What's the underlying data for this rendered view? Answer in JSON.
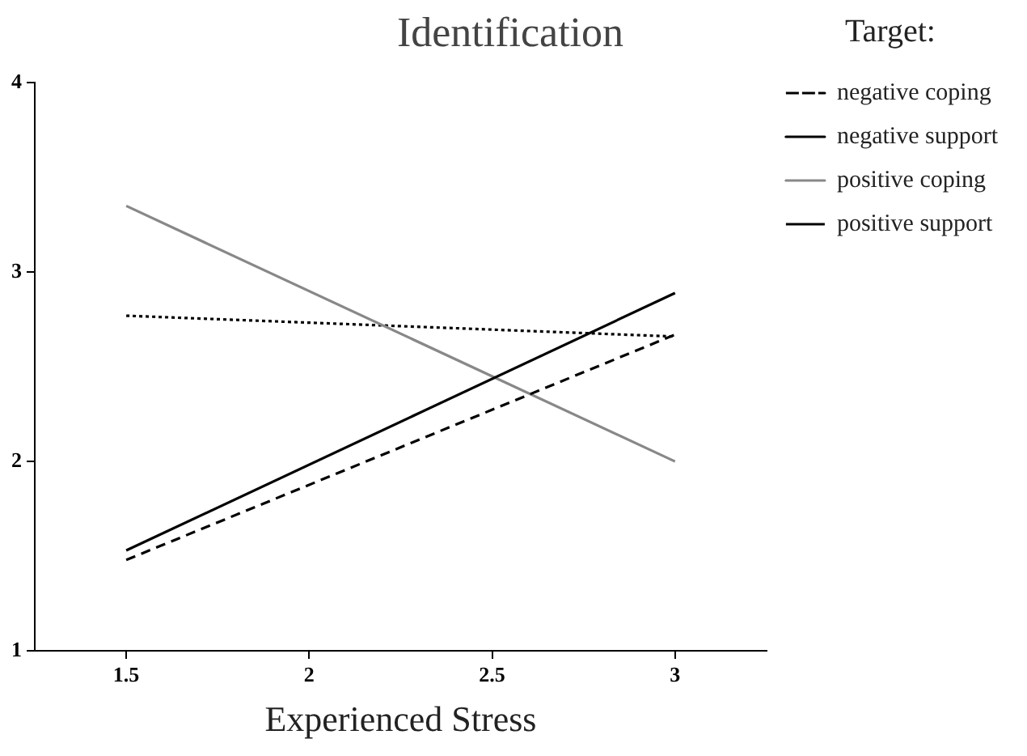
{
  "chart_data": {
    "type": "line",
    "title": "Identification",
    "xlabel": "Experienced Stress",
    "legend_title": "Target:",
    "legend": "right",
    "grid": false,
    "marker": "none",
    "x": [
      1.5,
      3
    ],
    "series": [
      {
        "name": "negative coping",
        "color": "#000000",
        "line_style": "dashed",
        "values": [
          1.48,
          2.67
        ]
      },
      {
        "name": "negative support",
        "color": "#000000",
        "line_style": "solid",
        "values": [
          1.53,
          2.89
        ]
      },
      {
        "name": "positive coping",
        "color": "#888888",
        "line_style": "solid",
        "values": [
          3.35,
          2.0
        ]
      },
      {
        "name": "positive support",
        "color": "#000000",
        "line_style": "dotted",
        "values": [
          2.77,
          2.66
        ]
      }
    ],
    "xlim": [
      1.25,
      3.25
    ],
    "ylim": [
      1,
      4
    ],
    "xticks": [
      1.5,
      2,
      2.5,
      3
    ],
    "yticks": [
      1,
      2,
      3,
      4
    ]
  }
}
